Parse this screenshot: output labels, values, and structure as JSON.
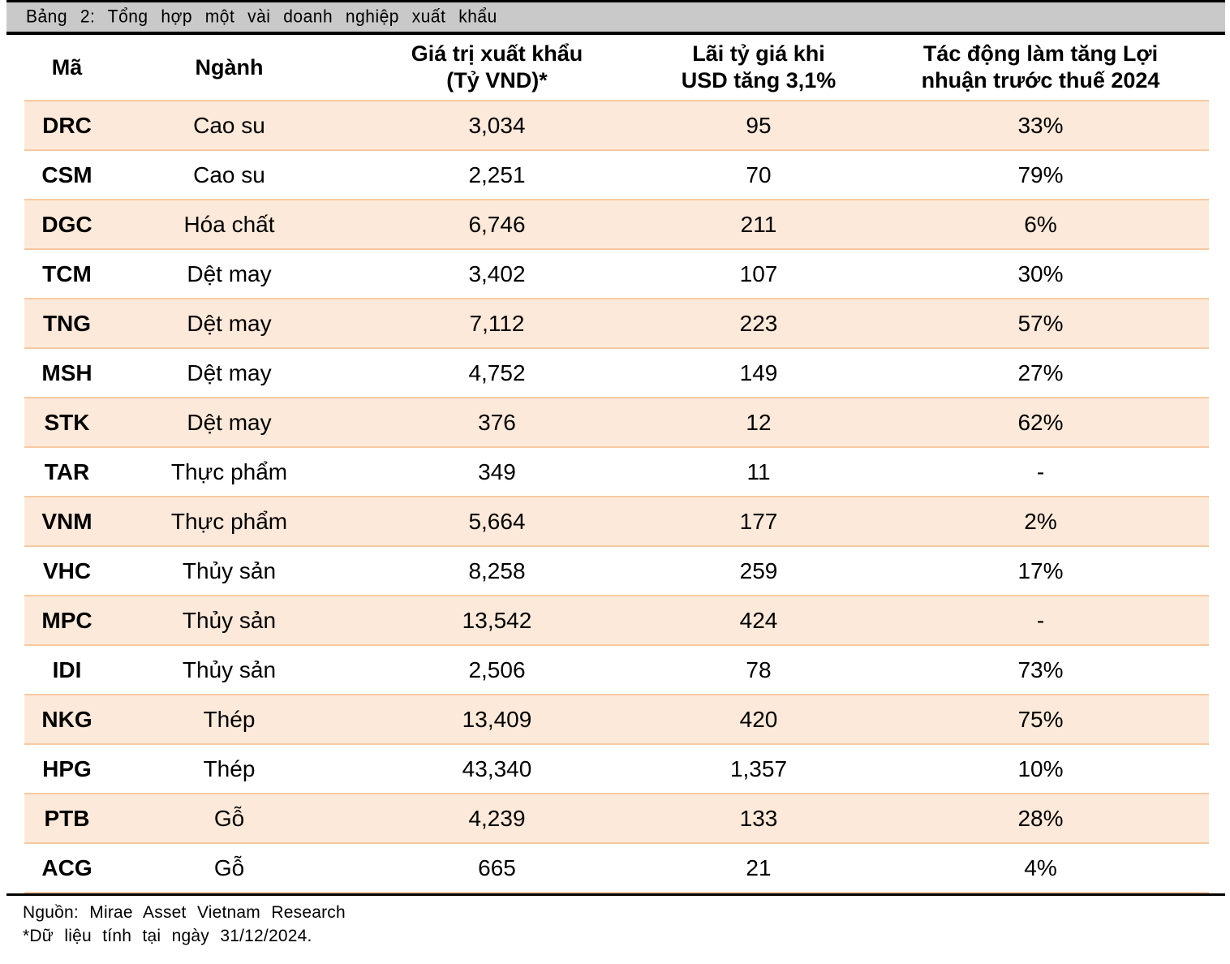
{
  "title_bar": {
    "title": "Bảng 2: Tổng hợp một vài doanh nghiệp xuất khẩu"
  },
  "table": {
    "columns": [
      {
        "label": "Mã",
        "line1": "Mã",
        "line2": ""
      },
      {
        "label": "Ngành",
        "line1": "Ngành",
        "line2": ""
      },
      {
        "label": "Giá trị xuất khẩu (Tỷ VND)*",
        "line1": "Giá trị xuất khẩu",
        "line2": "(Tỷ VND)*"
      },
      {
        "label": "Lãi tỷ giá khi USD tăng 3,1%",
        "line1": "Lãi tỷ giá khi",
        "line2": "USD tăng 3,1%"
      },
      {
        "label": "Tác động làm tăng Lợi nhuận trước thuế 2024",
        "line1": "Tác động làm tăng Lợi",
        "line2": "nhuận trước thuế 2024"
      }
    ],
    "rows": [
      {
        "ticker": "DRC",
        "industry": "Cao su",
        "export_value": "3,034",
        "fx_gain": "95",
        "profit_impact": "33%"
      },
      {
        "ticker": "CSM",
        "industry": "Cao su",
        "export_value": "2,251",
        "fx_gain": "70",
        "profit_impact": "79%"
      },
      {
        "ticker": "DGC",
        "industry": "Hóa chất",
        "export_value": "6,746",
        "fx_gain": "211",
        "profit_impact": "6%"
      },
      {
        "ticker": "TCM",
        "industry": "Dệt may",
        "export_value": "3,402",
        "fx_gain": "107",
        "profit_impact": "30%"
      },
      {
        "ticker": "TNG",
        "industry": "Dệt may",
        "export_value": "7,112",
        "fx_gain": "223",
        "profit_impact": "57%"
      },
      {
        "ticker": "MSH",
        "industry": "Dệt may",
        "export_value": "4,752",
        "fx_gain": "149",
        "profit_impact": "27%"
      },
      {
        "ticker": "STK",
        "industry": "Dệt may",
        "export_value": "376",
        "fx_gain": "12",
        "profit_impact": "62%"
      },
      {
        "ticker": "TAR",
        "industry": "Thực phẩm",
        "export_value": "349",
        "fx_gain": "11",
        "profit_impact": "-"
      },
      {
        "ticker": "VNM",
        "industry": "Thực phẩm",
        "export_value": "5,664",
        "fx_gain": "177",
        "profit_impact": "2%"
      },
      {
        "ticker": "VHC",
        "industry": "Thủy sản",
        "export_value": "8,258",
        "fx_gain": "259",
        "profit_impact": "17%"
      },
      {
        "ticker": "MPC",
        "industry": "Thủy sản",
        "export_value": "13,542",
        "fx_gain": "424",
        "profit_impact": "-"
      },
      {
        "ticker": "IDI",
        "industry": "Thủy sản",
        "export_value": "2,506",
        "fx_gain": "78",
        "profit_impact": "73%"
      },
      {
        "ticker": "NKG",
        "industry": "Thép",
        "export_value": "13,409",
        "fx_gain": "420",
        "profit_impact": "75%"
      },
      {
        "ticker": "HPG",
        "industry": "Thép",
        "export_value": "43,340",
        "fx_gain": "1,357",
        "profit_impact": "10%"
      },
      {
        "ticker": "PTB",
        "industry": "Gỗ",
        "export_value": "4,239",
        "fx_gain": "133",
        "profit_impact": "28%"
      },
      {
        "ticker": "ACG",
        "industry": "Gỗ",
        "export_value": "665",
        "fx_gain": "21",
        "profit_impact": "4%"
      }
    ]
  },
  "footer": {
    "source": "Nguồn: Mirae Asset Vietnam Research",
    "note": "*Dữ liệu tính tại ngày 31/12/2024."
  },
  "colors": {
    "row_highlight": "#fde9d9",
    "row_border": "#f6c9a0",
    "title_bar_bg": "#c9c9c9",
    "rule_black": "#000000"
  }
}
